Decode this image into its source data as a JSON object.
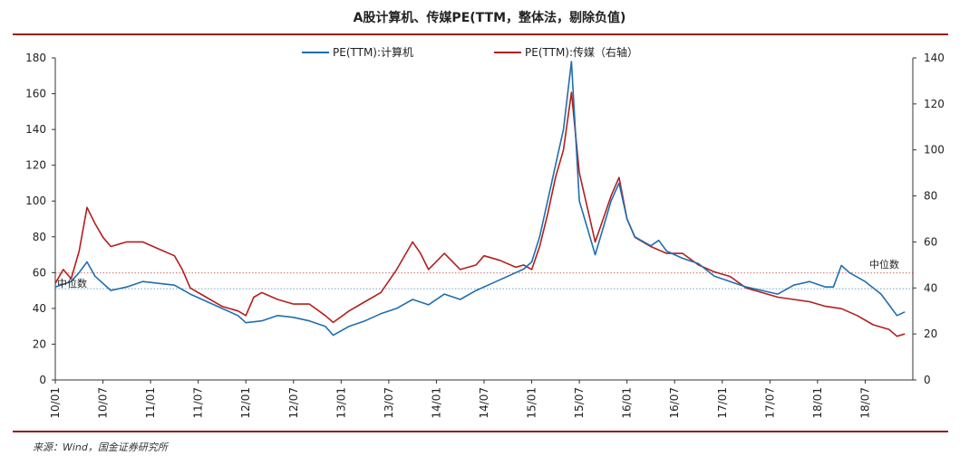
{
  "chart_data": {
    "type": "line",
    "title": "A股计算机、传媒PE(TTM，整体法，剔除负值)",
    "source": "来源：Wind，国金证券研究所",
    "x_labels": [
      "10/01",
      "10/07",
      "11/01",
      "11/07",
      "12/01",
      "12/07",
      "13/01",
      "13/07",
      "14/01",
      "14/07",
      "15/01",
      "15/07",
      "16/01",
      "16/07",
      "17/01",
      "17/07",
      "18/01",
      "18/07"
    ],
    "left_axis": {
      "min": 0,
      "max": 180,
      "ticks": [
        0,
        20,
        40,
        60,
        80,
        100,
        120,
        140,
        160,
        180
      ]
    },
    "right_axis": {
      "min": 0,
      "max": 140,
      "ticks": [
        0,
        20,
        40,
        60,
        80,
        100,
        120,
        140
      ]
    },
    "legend": [
      {
        "label": "PE(TTM):计算机",
        "color": "#1f6eb0"
      },
      {
        "label": "PE(TTM):传媒（右轴）",
        "color": "#b41e1e"
      }
    ],
    "median_label": "中位数",
    "series": [
      {
        "name": "PE(TTM):计算机",
        "axis": "left",
        "color": "#1f6eb0",
        "median": 51,
        "points": [
          [
            "2010-01",
            52
          ],
          [
            "2010-03",
            55
          ],
          [
            "2010-04",
            60
          ],
          [
            "2010-05",
            66
          ],
          [
            "2010-06",
            58
          ],
          [
            "2010-08",
            50
          ],
          [
            "2010-10",
            52
          ],
          [
            "2010-12",
            55
          ],
          [
            "2011-02",
            54
          ],
          [
            "2011-04",
            53
          ],
          [
            "2011-06",
            48
          ],
          [
            "2011-08",
            44
          ],
          [
            "2011-10",
            40
          ],
          [
            "2011-12",
            36
          ],
          [
            "2012-01",
            32
          ],
          [
            "2012-03",
            33
          ],
          [
            "2012-05",
            36
          ],
          [
            "2012-07",
            35
          ],
          [
            "2012-09",
            33
          ],
          [
            "2012-11",
            30
          ],
          [
            "2012-12",
            25
          ],
          [
            "2013-02",
            30
          ],
          [
            "2013-04",
            33
          ],
          [
            "2013-06",
            37
          ],
          [
            "2013-08",
            40
          ],
          [
            "2013-10",
            45
          ],
          [
            "2013-12",
            42
          ],
          [
            "2014-02",
            48
          ],
          [
            "2014-04",
            45
          ],
          [
            "2014-06",
            50
          ],
          [
            "2014-08",
            54
          ],
          [
            "2014-10",
            58
          ],
          [
            "2014-12",
            62
          ],
          [
            "2015-01",
            66
          ],
          [
            "2015-02",
            80
          ],
          [
            "2015-03",
            100
          ],
          [
            "2015-04",
            120
          ],
          [
            "2015-05",
            140
          ],
          [
            "2015-06",
            178
          ],
          [
            "2015-07",
            100
          ],
          [
            "2015-08",
            85
          ],
          [
            "2015-09",
            70
          ],
          [
            "2015-10",
            85
          ],
          [
            "2015-11",
            100
          ],
          [
            "2015-12",
            110
          ],
          [
            "2016-01",
            90
          ],
          [
            "2016-02",
            80
          ],
          [
            "2016-04",
            75
          ],
          [
            "2016-05",
            78
          ],
          [
            "2016-06",
            72
          ],
          [
            "2016-08",
            68
          ],
          [
            "2016-10",
            65
          ],
          [
            "2016-12",
            58
          ],
          [
            "2017-02",
            55
          ],
          [
            "2017-04",
            52
          ],
          [
            "2017-06",
            50
          ],
          [
            "2017-08",
            48
          ],
          [
            "2017-10",
            53
          ],
          [
            "2017-12",
            55
          ],
          [
            "2018-02",
            52
          ],
          [
            "2018-03",
            52
          ],
          [
            "2018-04",
            64
          ],
          [
            "2018-05",
            60
          ],
          [
            "2018-07",
            55
          ],
          [
            "2018-09",
            48
          ],
          [
            "2018-10",
            42
          ],
          [
            "2018-11",
            36
          ],
          [
            "2018-12",
            38
          ]
        ]
      },
      {
        "name": "PE(TTM):传媒（右轴）",
        "axis": "right",
        "color": "#b41e1e",
        "median": 46.5,
        "points": [
          [
            "2010-01",
            42
          ],
          [
            "2010-02",
            48
          ],
          [
            "2010-03",
            44
          ],
          [
            "2010-04",
            56
          ],
          [
            "2010-05",
            75
          ],
          [
            "2010-06",
            68
          ],
          [
            "2010-07",
            62
          ],
          [
            "2010-08",
            58
          ],
          [
            "2010-10",
            60
          ],
          [
            "2010-12",
            60
          ],
          [
            "2011-02",
            57
          ],
          [
            "2011-04",
            54
          ],
          [
            "2011-05",
            48
          ],
          [
            "2011-06",
            40
          ],
          [
            "2011-08",
            36
          ],
          [
            "2011-10",
            32
          ],
          [
            "2011-12",
            30
          ],
          [
            "2012-01",
            28
          ],
          [
            "2012-02",
            36
          ],
          [
            "2012-03",
            38
          ],
          [
            "2012-05",
            35
          ],
          [
            "2012-07",
            33
          ],
          [
            "2012-09",
            33
          ],
          [
            "2012-11",
            28
          ],
          [
            "2012-12",
            25
          ],
          [
            "2013-02",
            30
          ],
          [
            "2013-04",
            34
          ],
          [
            "2013-06",
            38
          ],
          [
            "2013-08",
            48
          ],
          [
            "2013-10",
            60
          ],
          [
            "2013-11",
            55
          ],
          [
            "2013-12",
            48
          ],
          [
            "2014-02",
            55
          ],
          [
            "2014-04",
            48
          ],
          [
            "2014-06",
            50
          ],
          [
            "2014-07",
            54
          ],
          [
            "2014-09",
            52
          ],
          [
            "2014-11",
            49
          ],
          [
            "2014-12",
            50
          ],
          [
            "2015-01",
            48
          ],
          [
            "2015-02",
            58
          ],
          [
            "2015-03",
            72
          ],
          [
            "2015-04",
            88
          ],
          [
            "2015-05",
            100
          ],
          [
            "2015-06",
            125
          ],
          [
            "2015-07",
            90
          ],
          [
            "2015-08",
            75
          ],
          [
            "2015-09",
            60
          ],
          [
            "2015-10",
            70
          ],
          [
            "2015-11",
            80
          ],
          [
            "2015-12",
            88
          ],
          [
            "2016-01",
            70
          ],
          [
            "2016-02",
            62
          ],
          [
            "2016-04",
            58
          ],
          [
            "2016-06",
            55
          ],
          [
            "2016-08",
            55
          ],
          [
            "2016-10",
            50
          ],
          [
            "2016-12",
            47
          ],
          [
            "2017-02",
            45
          ],
          [
            "2017-04",
            40
          ],
          [
            "2017-06",
            38
          ],
          [
            "2017-08",
            36
          ],
          [
            "2017-10",
            35
          ],
          [
            "2017-12",
            34
          ],
          [
            "2018-02",
            32
          ],
          [
            "2018-04",
            31
          ],
          [
            "2018-06",
            28
          ],
          [
            "2018-08",
            24
          ],
          [
            "2018-10",
            22
          ],
          [
            "2018-11",
            19
          ],
          [
            "2018-12",
            20
          ]
        ]
      }
    ]
  }
}
